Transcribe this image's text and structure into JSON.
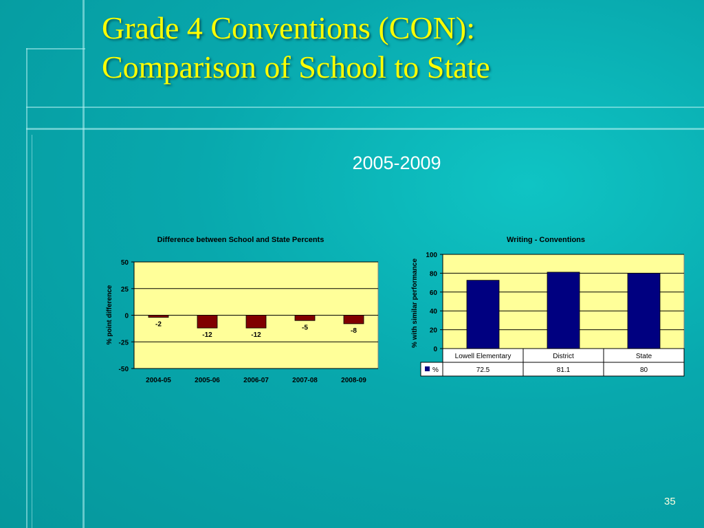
{
  "slide": {
    "title_line1": "Grade 4 Conventions (CON):",
    "title_line2": "Comparison of School to State",
    "subtitle": "2005-2009",
    "page_number": "35"
  },
  "colors": {
    "background": "#08a8ad",
    "title": "#ffff00",
    "plot_bg": "#ffff99",
    "bar_diff": "#800000",
    "bar_writing": "#000080"
  },
  "chart_data": [
    {
      "type": "bar",
      "title": "Difference between School and State Percents",
      "xlabel": "",
      "ylabel": "% point difference",
      "categories": [
        "2004-05",
        "2005-06",
        "2006-07",
        "2007-08",
        "2008-09"
      ],
      "series": [
        {
          "values": [
            -2,
            -12,
            -12,
            -5,
            -8
          ]
        }
      ],
      "data_labels": [
        "-2",
        "-12",
        "-12",
        "-5",
        "-8"
      ],
      "ylim": [
        -50,
        50
      ],
      "yticks": [
        50,
        25,
        0,
        -25,
        -50
      ],
      "grid": true
    },
    {
      "type": "bar",
      "title": "Writing - Conventions",
      "xlabel": "",
      "ylabel": "% with similar performance",
      "categories": [
        "Lowell Elementary",
        "District",
        "State"
      ],
      "series": [
        {
          "name": "%",
          "values": [
            72.5,
            81.1,
            80
          ]
        }
      ],
      "table_values": [
        "72.5",
        "81.1",
        "80"
      ],
      "ylim": [
        0,
        100
      ],
      "yticks": [
        100,
        80,
        60,
        40,
        20,
        0
      ],
      "grid": true,
      "legend": "data-table"
    }
  ]
}
